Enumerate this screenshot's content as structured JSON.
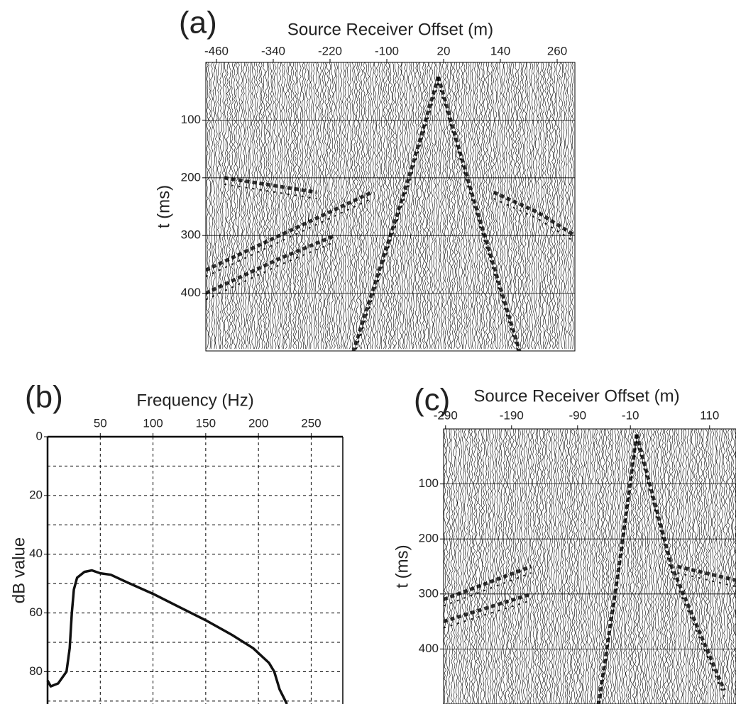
{
  "chart_data": [
    {
      "type": "seismic",
      "panel_label": "(a)",
      "xlabel": "Source Receiver Offset (m)",
      "ylabel": "t (ms)",
      "xlim": [
        -482.5,
        297.5
      ],
      "ylim": [
        0,
        500
      ],
      "y_axis_inverted": true,
      "xticks": [
        -460,
        -340,
        -220,
        -100,
        20,
        140,
        260
      ],
      "yticks": [
        100,
        200,
        300,
        400
      ],
      "grid": true
    },
    {
      "type": "line",
      "panel_label": "(b)",
      "xlabel": "Frequency (Hz)",
      "ylabel": "dB value",
      "xlim": [
        0,
        280
      ],
      "ylim": [
        0,
        91
      ],
      "y_axis_inverted": true,
      "xticks": [
        50,
        100,
        150,
        200,
        250
      ],
      "yticks": [
        0,
        20,
        40,
        60,
        80
      ],
      "minor_yticks": [
        10,
        30,
        50,
        70,
        90
      ],
      "grid": "dashed",
      "color": "#111111",
      "x": [
        0,
        3,
        10,
        18,
        21,
        23,
        25,
        28,
        35,
        42,
        50,
        60,
        75,
        100,
        125,
        150,
        175,
        195,
        210,
        215,
        220,
        227
      ],
      "values": [
        83,
        85,
        84,
        80,
        72,
        60,
        52,
        48,
        46,
        45.5,
        46.5,
        47,
        49.5,
        53.5,
        58,
        62.5,
        67.5,
        72,
        77,
        80,
        86,
        91
      ]
    },
    {
      "type": "seismic",
      "panel_label": "(c)",
      "xlabel": "Source Receiver Offset (m)",
      "ylabel": "t (ms)",
      "xlim": [
        -293,
        150
      ],
      "ylim": [
        0,
        500
      ],
      "y_axis_inverted": true,
      "xticks": [
        -290,
        -190,
        -90,
        -10,
        110
      ],
      "yticks": [
        100,
        200,
        300,
        400
      ],
      "grid": true
    }
  ]
}
